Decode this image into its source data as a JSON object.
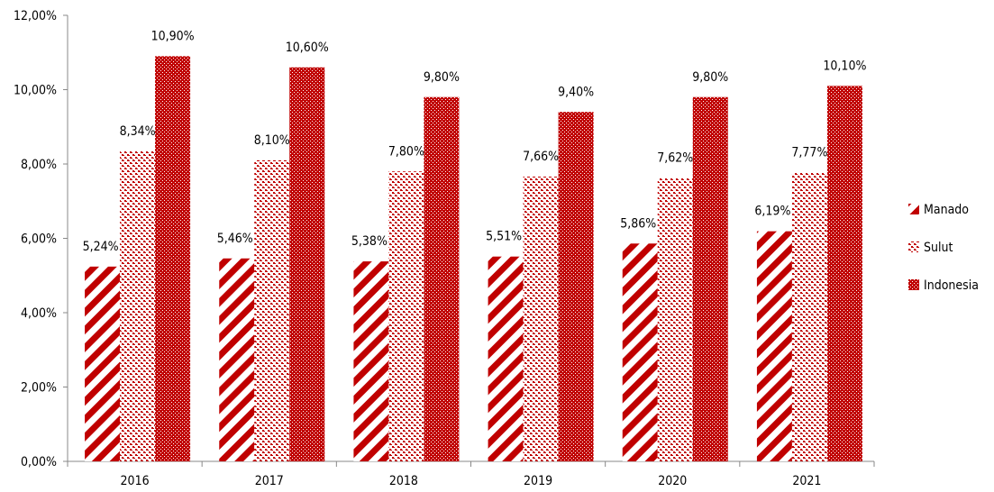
{
  "chart_data": {
    "type": "bar",
    "categories": [
      "2016",
      "2017",
      "2018",
      "2019",
      "2020",
      "2021"
    ],
    "series": [
      {
        "name": "Manado",
        "values": [
          5.24,
          5.46,
          5.38,
          5.51,
          5.86,
          6.19
        ],
        "labels": [
          "5,24%",
          "5,46%",
          "5,38%",
          "5,51%",
          "5,86%",
          "6,19%"
        ],
        "pattern": "diagonal-stripes"
      },
      {
        "name": "Sulut",
        "values": [
          8.34,
          8.1,
          7.8,
          7.66,
          7.62,
          7.77
        ],
        "labels": [
          "8,34%",
          "8,10%",
          "7,80%",
          "7,66%",
          "7,62%",
          "7,77%"
        ],
        "pattern": "sparse-checker"
      },
      {
        "name": "Indonesia",
        "values": [
          10.9,
          10.6,
          9.8,
          9.4,
          9.8,
          10.1
        ],
        "labels": [
          "10,90%",
          "10,60%",
          "9,80%",
          "9,40%",
          "9,80%",
          "10,10%"
        ],
        "pattern": "dense-checker"
      }
    ],
    "ylim": [
      0,
      12
    ],
    "yticks": [
      "0,00%",
      "2,00%",
      "4,00%",
      "6,00%",
      "8,00%",
      "10,00%",
      "12,00%"
    ],
    "legend_position": "right",
    "grid": false,
    "color": "#c00000"
  }
}
